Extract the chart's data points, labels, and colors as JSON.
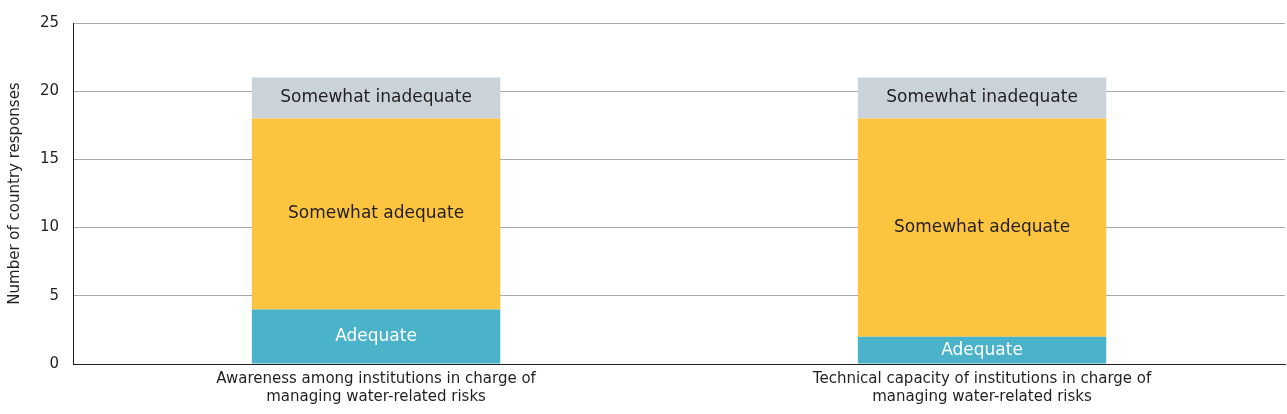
{
  "chart_data": {
    "type": "bar",
    "stacked": true,
    "ylabel": "Number of country responses",
    "categories": [
      "Awareness among institutions in charge of managing water-related risks",
      "Technical capacity of institutions in charge of managing water-related risks"
    ],
    "series": [
      {
        "name": "Adequate",
        "color": "#4bb3c9",
        "values": [
          4,
          2
        ]
      },
      {
        "name": "Somewhat adequate",
        "color": "#fcc43f",
        "values": [
          14,
          16
        ]
      },
      {
        "name": "Somewhat inadequate",
        "color": "#c9d3d9",
        "values": [
          3,
          3
        ]
      }
    ],
    "ylim": [
      0,
      25
    ],
    "yticks": [
      0,
      5,
      10,
      15,
      20,
      25
    ],
    "grid": "y",
    "legend": false
  }
}
